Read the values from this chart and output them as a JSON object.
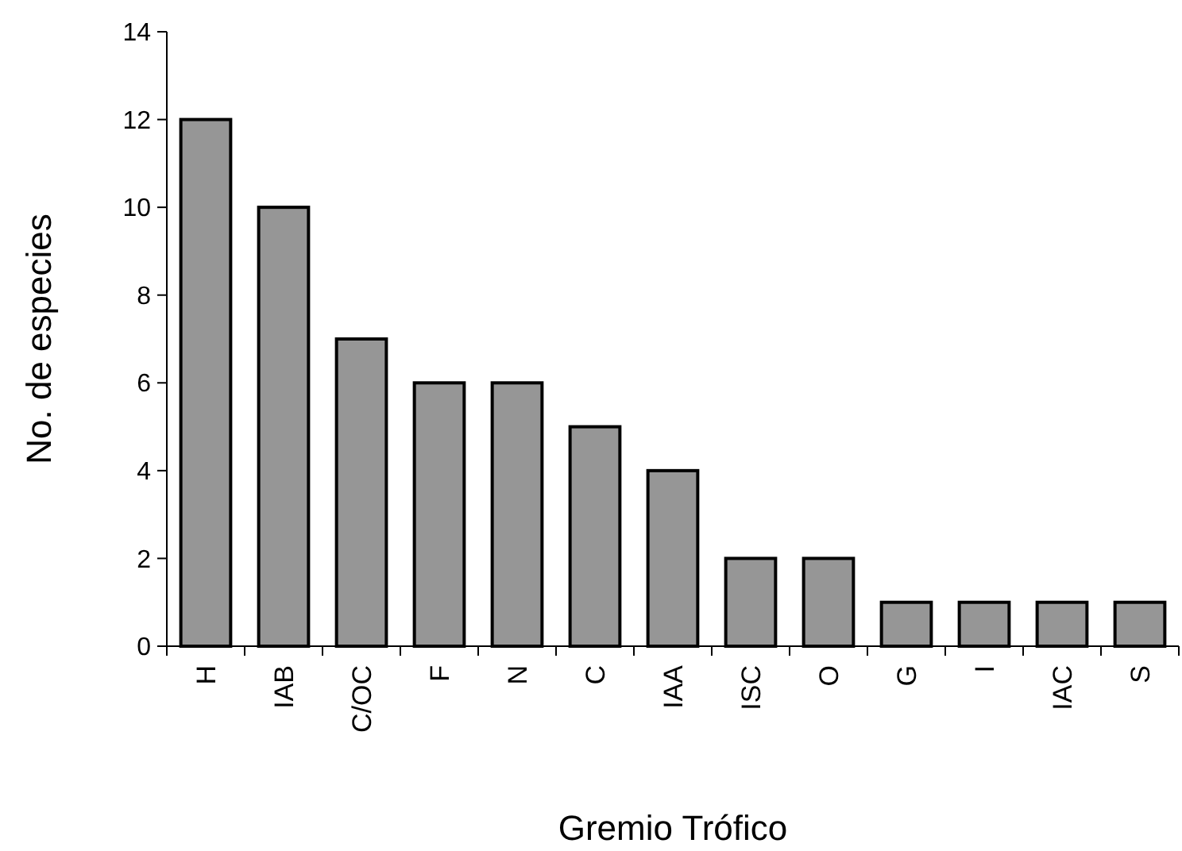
{
  "chart_data": {
    "type": "bar",
    "xlabel": "Gremio Trófico",
    "ylabel": "No. de especies",
    "categories": [
      "H",
      "IAB",
      "C/OC",
      "F",
      "N",
      "C",
      "IAA",
      "ISC",
      "O",
      "G",
      "I",
      "IAC",
      "S"
    ],
    "values": [
      12,
      10,
      7,
      6,
      6,
      5,
      4,
      2,
      2,
      1,
      1,
      1,
      1
    ],
    "color": "#969696",
    "ylim": [
      0,
      14
    ],
    "yticks": [
      0,
      2,
      4,
      6,
      8,
      10,
      12,
      14
    ],
    "grid": false
  }
}
